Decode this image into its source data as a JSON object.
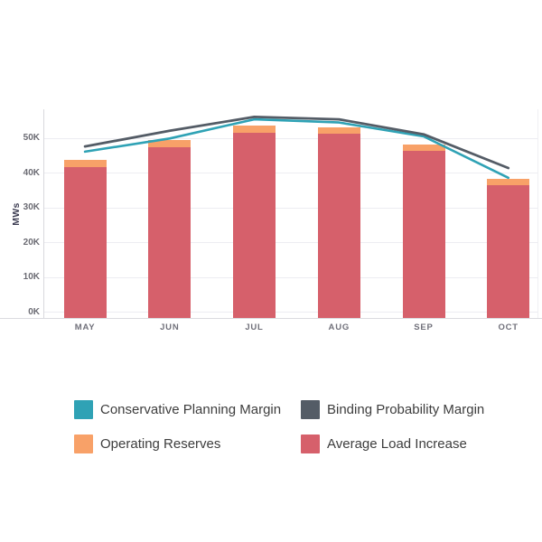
{
  "page": {
    "background": "#ffffff"
  },
  "chart_data": {
    "type": "combo-stacked-bar-line",
    "title": "",
    "xlabel": "",
    "ylabel": "MWs",
    "categories": [
      "MAY",
      "JUN",
      "JUL",
      "AUG",
      "SEP",
      "OCT"
    ],
    "series": [
      {
        "name": "Average Load Increase",
        "type": "bar",
        "stack": "load-stack",
        "color": "#D6606B",
        "values": [
          43400,
          49200,
          53200,
          53000,
          48100,
          38200
        ]
      },
      {
        "name": "Operating Reserves",
        "type": "bar",
        "stack": "load-stack",
        "color": "#F8A168",
        "values": [
          2000,
          1900,
          2100,
          1700,
          1900,
          1900
        ]
      },
      {
        "name": "Conservative Planning Margin",
        "type": "line",
        "color": "#2FA2B5",
        "values": [
          46000,
          49800,
          55300,
          54400,
          50400,
          38500
        ]
      },
      {
        "name": "Binding Probability Margin",
        "type": "line",
        "color": "#545C66",
        "values": [
          47500,
          52000,
          56000,
          55300,
          51000,
          41300
        ]
      }
    ],
    "y_ticks": [
      {
        "value": 0,
        "label": "0K"
      },
      {
        "value": 10000,
        "label": "10K"
      },
      {
        "value": 20000,
        "label": "20K"
      },
      {
        "value": 30000,
        "label": "30K"
      },
      {
        "value": 40000,
        "label": "40K"
      },
      {
        "value": 50000,
        "label": "50K"
      }
    ],
    "ylim": [
      0,
      58000
    ],
    "grid": "horizontal",
    "legend_position": "bottom"
  },
  "legend": {
    "items": [
      {
        "label": "Conservative Planning Margin",
        "color": "#2FA2B5"
      },
      {
        "label": "Binding Probability Margin",
        "color": "#545C66"
      },
      {
        "label": "Operating Reserves",
        "color": "#F8A168"
      },
      {
        "label": "Average Load Increase",
        "color": "#D6606B"
      }
    ]
  }
}
